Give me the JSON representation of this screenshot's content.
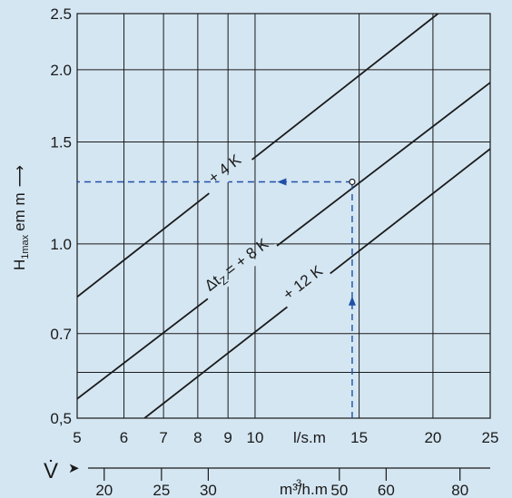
{
  "chart_data": {
    "type": "line",
    "x_scale": "log",
    "y_scale": "log",
    "grid": true,
    "xlim": [
      5,
      25
    ],
    "ylim": [
      0.5,
      2.5
    ],
    "x_ticks": [
      5,
      6,
      7,
      8,
      9,
      10,
      15,
      20,
      25
    ],
    "x_tick_labels": [
      "5",
      "6",
      "7",
      "8",
      "9",
      "10",
      "15",
      "20",
      "25"
    ],
    "x_unit_label": "l/s.m",
    "y_ticks": [
      0.5,
      0.6,
      0.7,
      1.0,
      1.5,
      2.0,
      2.5
    ],
    "y_tick_labels": [
      "0,5",
      "",
      "0.7",
      "1.0",
      "1.5",
      "2.0",
      "2.5"
    ],
    "ylabel_main": "H",
    "ylabel_sub": "1max",
    "ylabel_rest": "em m",
    "ylabel_arrow": "⟶",
    "secondary_x_axis": {
      "symbol": "V̇",
      "arrow": "➤",
      "ticks": [
        20,
        25,
        30,
        50,
        60,
        80
      ],
      "tick_labels": [
        "20",
        "25",
        "30",
        "50",
        "60",
        "80"
      ],
      "unit_label": "m³/h.m"
    },
    "series": [
      {
        "name": "+ 4 K",
        "x": [
          5,
          20.4
        ],
        "y": [
          0.81,
          2.5
        ]
      },
      {
        "name": "Δt",
        "name_sub": "Z",
        "name_rest": " = + 8 K",
        "x": [
          5,
          25
        ],
        "y": [
          0.54,
          1.9
        ]
      },
      {
        "name": "+ 12 K",
        "x": [
          6.5,
          25
        ],
        "y": [
          0.5,
          1.46
        ]
      }
    ],
    "example": {
      "x": 14.6,
      "y": 1.28,
      "arrow_up_label": "▲",
      "arrow_left_label": "◀"
    },
    "colors": {
      "background": "#d4e6f2",
      "grid": "#1a1a1a",
      "curves": "#1a1a1a",
      "dashed_guides": "#1f4fa8"
    }
  }
}
